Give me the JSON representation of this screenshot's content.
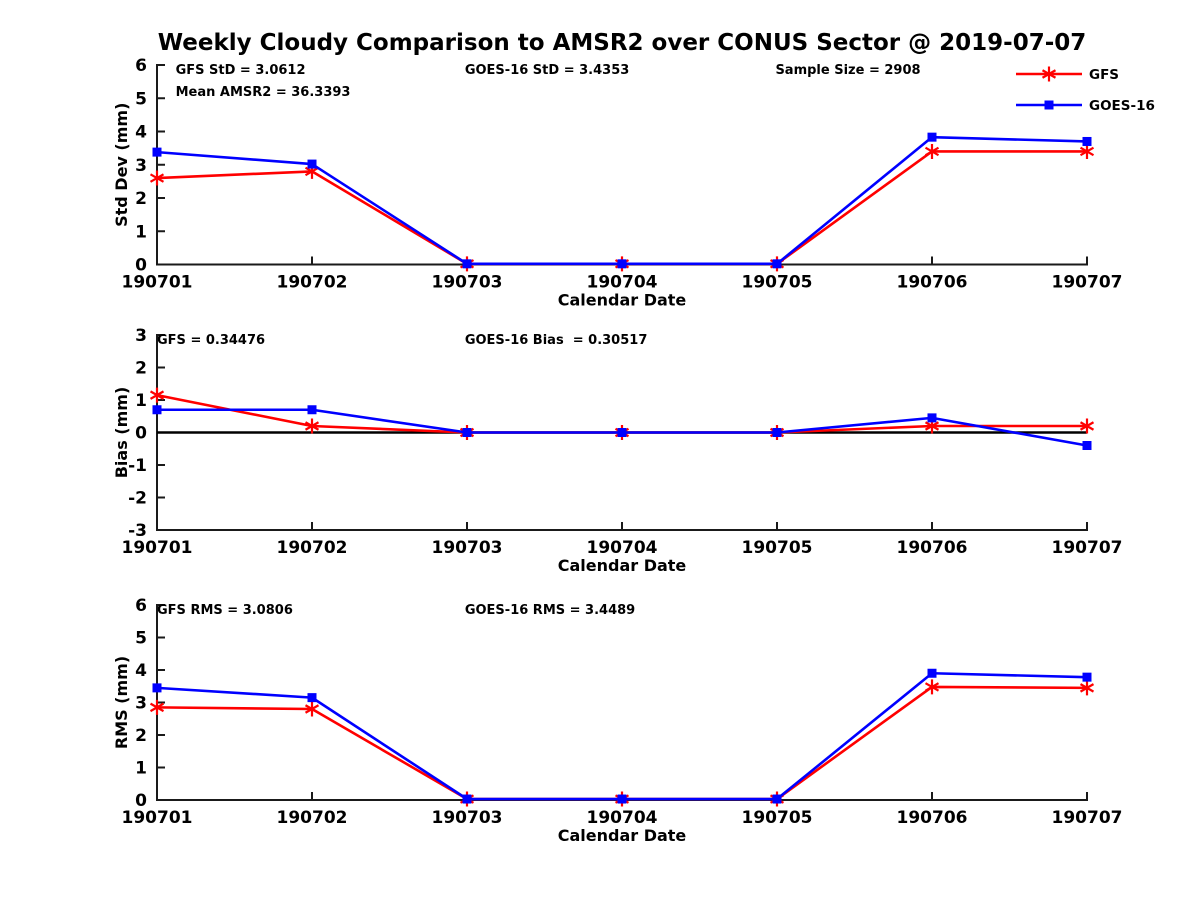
{
  "title": "Weekly Cloudy Comparison to AMSR2 over CONUS Sector @ 2019-07-07",
  "colors": {
    "gfs": "#ff0000",
    "goes16": "#0000ff",
    "axis": "#1a1a1a",
    "text": "#000000",
    "zero_line": "#000000",
    "background": "#ffffff"
  },
  "legend": {
    "position": "top-right",
    "entries": [
      {
        "label": "GFS",
        "color": "#ff0000",
        "marker": "asterisk"
      },
      {
        "label": "GOES-16",
        "color": "#0000ff",
        "marker": "square"
      }
    ]
  },
  "chart_data": [
    {
      "id": "stddev",
      "type": "line",
      "title": "",
      "xlabel": "Calendar Date",
      "ylabel": "Std Dev (mm)",
      "ylim": [
        0,
        6
      ],
      "yticks": [
        0,
        1,
        2,
        3,
        4,
        5,
        6
      ],
      "grid": false,
      "zero_line": false,
      "categories": [
        "190701",
        "190702",
        "190703",
        "190704",
        "190705",
        "190706",
        "190707"
      ],
      "series": [
        {
          "name": "GFS",
          "color": "#ff0000",
          "marker": "asterisk",
          "values": [
            2.6,
            2.8,
            0.02,
            0.02,
            0.02,
            3.4,
            3.4
          ]
        },
        {
          "name": "GOES-16",
          "color": "#0000ff",
          "marker": "square",
          "values": [
            3.38,
            3.02,
            0.02,
            0.02,
            0.02,
            3.83,
            3.7
          ]
        }
      ],
      "annotations": [
        {
          "text": "GFS StD = 3.0612",
          "fx": 0.02,
          "row": 0
        },
        {
          "text": "Mean AMSR2 = 36.3393",
          "fx": 0.02,
          "row": 1
        },
        {
          "text": "GOES-16 StD = 3.4353",
          "fx": 0.331,
          "row": 0
        },
        {
          "text": "Sample Size = 2908",
          "fx": 0.665,
          "row": 0
        }
      ]
    },
    {
      "id": "bias",
      "type": "line",
      "title": "",
      "xlabel": "Calendar Date",
      "ylabel": "Bias (mm)",
      "ylim": [
        -3,
        3
      ],
      "yticks": [
        -3,
        -2,
        -1,
        0,
        1,
        2,
        3
      ],
      "grid": false,
      "zero_line": true,
      "categories": [
        "190701",
        "190702",
        "190703",
        "190704",
        "190705",
        "190706",
        "190707"
      ],
      "series": [
        {
          "name": "GFS",
          "color": "#ff0000",
          "marker": "asterisk",
          "values": [
            1.15,
            0.2,
            0,
            0,
            0,
            0.2,
            0.2
          ]
        },
        {
          "name": "GOES-16",
          "color": "#0000ff",
          "marker": "square",
          "values": [
            0.7,
            0.7,
            0,
            0,
            0,
            0.45,
            -0.4
          ]
        }
      ],
      "annotations": [
        {
          "text": "GFS = 0.34476",
          "fx": 0.0,
          "row": 0
        },
        {
          "text": "GOES-16 Bias  = 0.30517",
          "fx": 0.331,
          "row": 0
        }
      ]
    },
    {
      "id": "rms",
      "type": "line",
      "title": "",
      "xlabel": "Calendar Date",
      "ylabel": "RMS (mm)",
      "ylim": [
        0,
        6
      ],
      "yticks": [
        0,
        1,
        2,
        3,
        4,
        5,
        6
      ],
      "grid": false,
      "zero_line": false,
      "categories": [
        "190701",
        "190702",
        "190703",
        "190704",
        "190705",
        "190706",
        "190707"
      ],
      "series": [
        {
          "name": "GFS",
          "color": "#ff0000",
          "marker": "asterisk",
          "values": [
            2.85,
            2.8,
            0.03,
            0.03,
            0.03,
            3.48,
            3.45
          ]
        },
        {
          "name": "GOES-16",
          "color": "#0000ff",
          "marker": "square",
          "values": [
            3.45,
            3.15,
            0.03,
            0.03,
            0.03,
            3.9,
            3.78
          ]
        }
      ],
      "annotations": [
        {
          "text": "GFS RMS = 3.0806",
          "fx": 0.0,
          "row": 0
        },
        {
          "text": "GOES-16 RMS = 3.4489",
          "fx": 0.331,
          "row": 0
        }
      ]
    }
  ]
}
